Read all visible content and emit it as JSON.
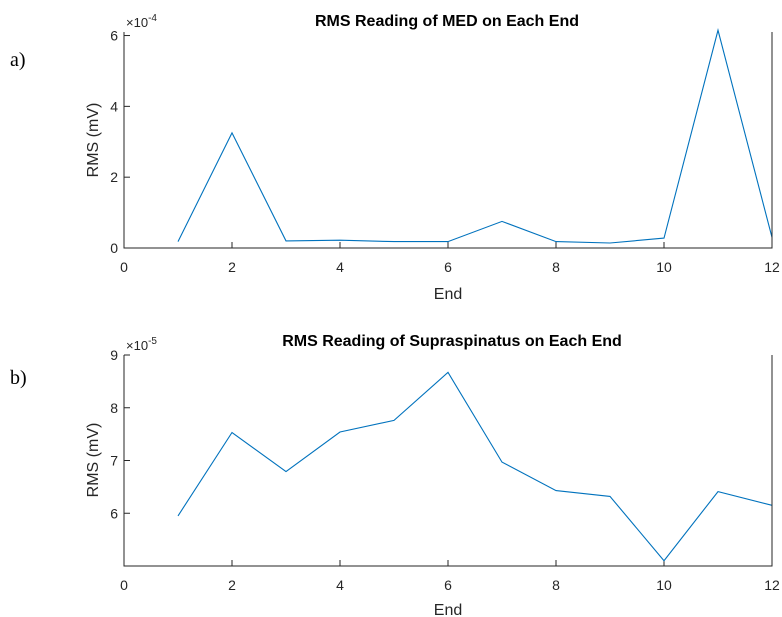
{
  "chart_data": [
    {
      "type": "line",
      "panel_label": "a)",
      "title": "RMS Reading of MED on Each End",
      "xlabel": "End",
      "ylabel": "RMS (mV)",
      "exponent_base": "×10",
      "exponent_power": "-4",
      "xlim": [
        0,
        12
      ],
      "ylim": [
        0,
        6.1
      ],
      "xticks": [
        0,
        2,
        4,
        6,
        8,
        10,
        12
      ],
      "yticks": [
        0,
        2,
        4,
        6
      ],
      "grid": false,
      "color": "#0072bd",
      "series": [
        {
          "x": [
            1,
            2,
            3,
            4,
            5,
            6,
            7,
            8,
            9,
            10,
            11,
            12
          ],
          "values": [
            0.18,
            3.25,
            0.2,
            0.22,
            0.18,
            0.18,
            0.75,
            0.18,
            0.14,
            0.28,
            6.15,
            0.3
          ]
        }
      ]
    },
    {
      "type": "line",
      "panel_label": "b)",
      "title": "RMS Reading of Supraspinatus on Each End",
      "xlabel": "End",
      "ylabel": "RMS (mV)",
      "exponent_base": "×10",
      "exponent_power": "-5",
      "xlim": [
        0,
        12
      ],
      "ylim": [
        5,
        9
      ],
      "xticks": [
        0,
        2,
        4,
        6,
        8,
        10,
        12
      ],
      "yticks": [
        6,
        7,
        8,
        9
      ],
      "grid": false,
      "color": "#0072bd",
      "series": [
        {
          "x": [
            1,
            2,
            3,
            4,
            5,
            6,
            7,
            8,
            9,
            10,
            11,
            12
          ],
          "values": [
            5.95,
            7.53,
            6.79,
            7.54,
            7.76,
            8.67,
            6.97,
            6.43,
            6.32,
            5.1,
            6.41,
            6.15
          ]
        }
      ]
    }
  ]
}
